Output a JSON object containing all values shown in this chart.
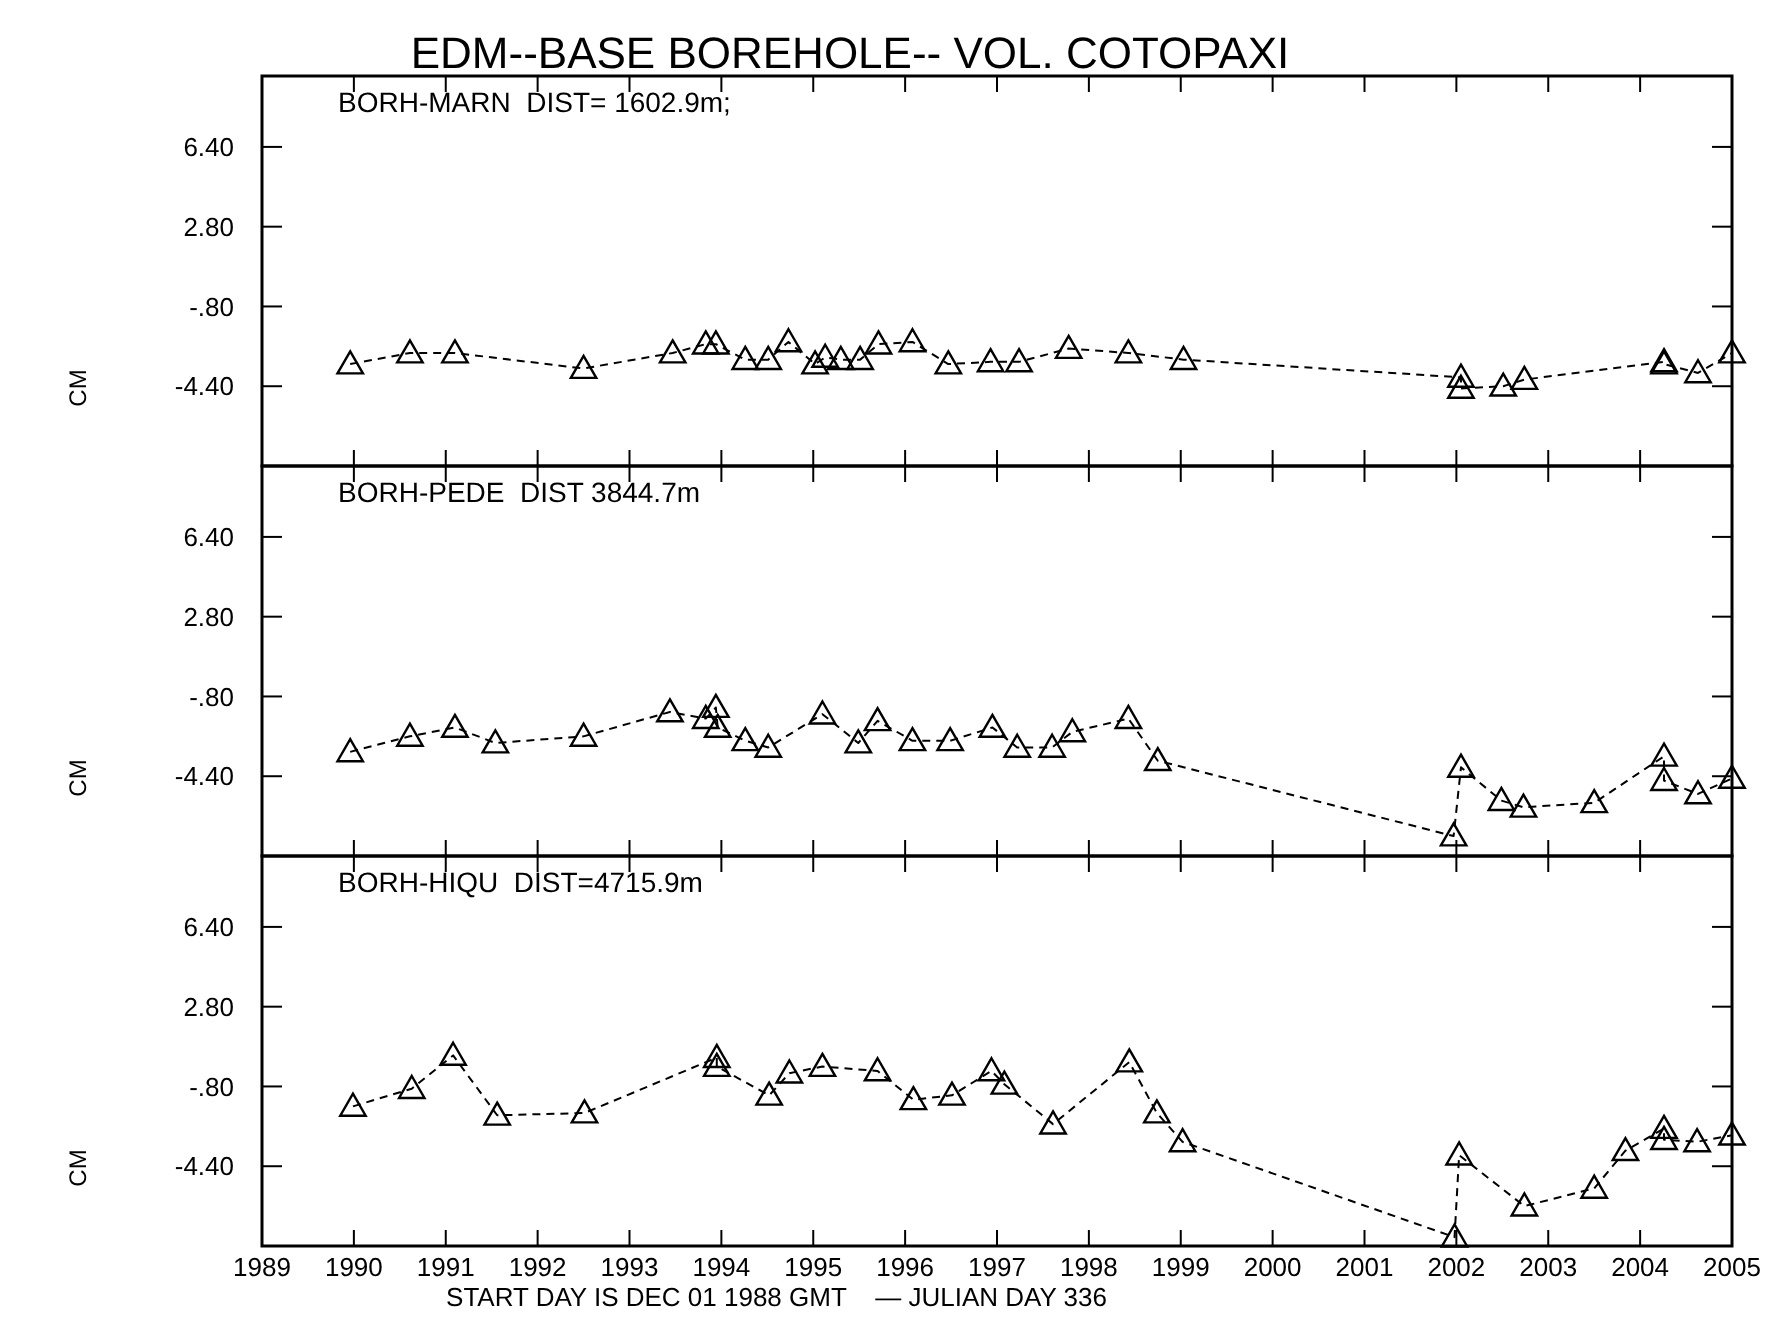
{
  "chart_data": [
    {
      "type": "line",
      "title": "EDM--BASE BOREHOLE-- VOL. COTOPAXI",
      "ylabel": "CM",
      "annotations": [
        "BORH-MARN  DIST= 1602.9m;"
      ],
      "marker": "triangle",
      "line_style": "dashed",
      "tick_labels": "y",
      "xlim": [
        1989,
        2005
      ],
      "xticks": [
        1989,
        1990,
        1991,
        1992,
        1993,
        1994,
        1995,
        1996,
        1997,
        1998,
        1999,
        2000,
        2001,
        2002,
        2003,
        2004,
        2005
      ],
      "ylim": [
        -8.0,
        9.6
      ],
      "yticks": [
        {
          "value": 6.4,
          "label": "6.40"
        },
        {
          "value": 2.8,
          "label": "2.80"
        },
        {
          "value": -0.8,
          "label": "-.80"
        },
        {
          "value": -4.4,
          "label": "-4.40"
        }
      ],
      "x": [
        1989.96,
        1990.61,
        1991.1,
        1992.5,
        1993.47,
        1993.83,
        1993.94,
        1994.26,
        1994.51,
        1994.73,
        1995.02,
        1995.13,
        1995.3,
        1995.51,
        1995.71,
        1996.08,
        1996.47,
        1996.93,
        1997.24,
        1997.78,
        1998.43,
        1999.03,
        2002.05,
        2002.05,
        2002.51,
        2002.74,
        2004.26,
        2004.26,
        2004.63,
        2005.0
      ],
      "series": [
        {
          "color": "#000000",
          "values": [
            -3.4,
            -2.9,
            -2.9,
            -3.6,
            -2.9,
            -2.5,
            -2.5,
            -3.2,
            -3.2,
            -2.4,
            -3.4,
            -3.1,
            -3.2,
            -3.2,
            -2.5,
            -2.4,
            -3.4,
            -3.3,
            -3.3,
            -2.7,
            -2.9,
            -3.2,
            -4.0,
            -4.5,
            -4.4,
            -4.1,
            -3.3,
            -3.4,
            -3.8,
            -2.9
          ]
        }
      ]
    },
    {
      "type": "line",
      "ylabel": "CM",
      "annotations": [
        "BORH-PEDE  DIST 3844.7m"
      ],
      "marker": "triangle",
      "line_style": "dashed",
      "tick_labels": "y",
      "xlim": [
        1989,
        2005
      ],
      "xticks": [
        1989,
        1990,
        1991,
        1992,
        1993,
        1994,
        1995,
        1996,
        1997,
        1998,
        1999,
        2000,
        2001,
        2002,
        2003,
        2004,
        2005
      ],
      "ylim": [
        -8.0,
        9.6
      ],
      "yticks": [
        {
          "value": 6.4,
          "label": "6.40"
        },
        {
          "value": 2.8,
          "label": "2.80"
        },
        {
          "value": -0.8,
          "label": "-.80"
        },
        {
          "value": -4.4,
          "label": "-4.40"
        }
      ],
      "x": [
        1989.96,
        1990.61,
        1991.1,
        1991.54,
        1992.5,
        1993.44,
        1993.83,
        1993.94,
        1993.96,
        1994.26,
        1994.51,
        1995.1,
        1995.49,
        1995.7,
        1996.08,
        1996.49,
        1996.95,
        1997.22,
        1997.6,
        1997.82,
        1998.43,
        1998.75,
        2001.97,
        2002.05,
        2002.49,
        2002.73,
        2003.5,
        2004.26,
        2004.26,
        2004.63,
        2005.0
      ],
      "series": [
        {
          "color": "#000000",
          "values": [
            -3.3,
            -2.6,
            -2.2,
            -2.9,
            -2.6,
            -1.5,
            -1.8,
            -1.3,
            -2.2,
            -2.8,
            -3.1,
            -1.6,
            -2.9,
            -1.9,
            -2.8,
            -2.8,
            -2.2,
            -3.1,
            -3.1,
            -2.4,
            -1.8,
            -3.7,
            -7.1,
            -4.0,
            -5.5,
            -5.8,
            -5.6,
            -3.5,
            -4.6,
            -5.2,
            -4.5
          ]
        }
      ]
    },
    {
      "type": "line",
      "ylabel": "CM",
      "xlabel": "START DAY IS DEC 01 1988 GMT    — JULIAN DAY 336",
      "annotations": [
        "BORH-HIQU  DIST=4715.9m"
      ],
      "marker": "triangle",
      "line_style": "dashed",
      "xlim": [
        1989,
        2005
      ],
      "xticks": [
        1989,
        1990,
        1991,
        1992,
        1993,
        1994,
        1995,
        1996,
        1997,
        1998,
        1999,
        2000,
        2001,
        2002,
        2003,
        2004,
        2005
      ],
      "ylim": [
        -8.0,
        9.6
      ],
      "yticks": [
        {
          "value": 6.4,
          "label": "6.40"
        },
        {
          "value": 2.8,
          "label": "2.80"
        },
        {
          "value": -0.8,
          "label": "-.80"
        },
        {
          "value": -4.4,
          "label": "-4.40"
        }
      ],
      "x": [
        1989.99,
        1990.63,
        1991.08,
        1991.56,
        1992.51,
        1993.95,
        1993.95,
        1994.52,
        1994.74,
        1995.1,
        1995.7,
        1996.09,
        1996.51,
        1996.94,
        1997.08,
        1997.61,
        1998.44,
        1998.74,
        1999.02,
        2001.98,
        2002.03,
        2002.74,
        2003.5,
        2003.84,
        2004.26,
        2004.26,
        2004.62,
        2005.0
      ],
      "series": [
        {
          "color": "#000000",
          "values": [
            -1.7,
            -0.9,
            0.6,
            -2.1,
            -2.0,
            0.5,
            0.1,
            -1.2,
            -0.2,
            0.1,
            -0.1,
            -1.4,
            -1.2,
            -0.1,
            -0.7,
            -2.5,
            0.3,
            -2.0,
            -3.3,
            -7.6,
            -3.9,
            -6.2,
            -5.4,
            -3.7,
            -2.7,
            -3.2,
            -3.3,
            -3.0
          ]
        }
      ]
    }
  ]
}
